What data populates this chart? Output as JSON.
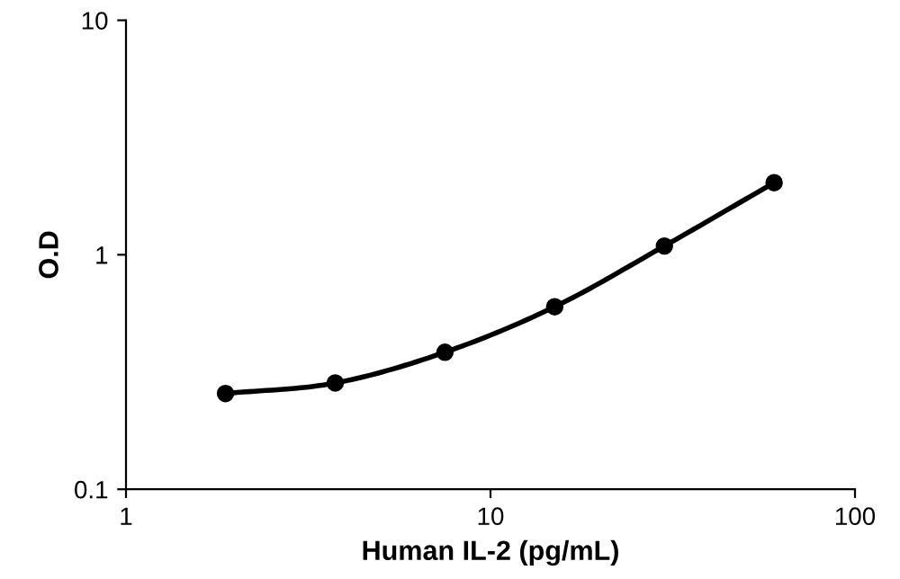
{
  "chart_data": {
    "type": "line",
    "xlabel": "Human IL-2 (pg/mL)",
    "ylabel": "O.D",
    "log": "xy",
    "x": [
      1.875,
      3.75,
      7.5,
      15,
      30,
      60
    ],
    "series": [
      {
        "color": "#000000",
        "values": [
          0.256,
          0.284,
          0.384,
          0.6,
          1.09,
          2.03
        ]
      }
    ],
    "xlim": [
      1,
      100
    ],
    "ylim": [
      0.1,
      10
    ],
    "xticks": [
      1,
      10,
      100
    ],
    "yticks": [
      0.1,
      1,
      10
    ],
    "marker": "circle",
    "line_style": "solid",
    "grid": false,
    "legend": false
  }
}
